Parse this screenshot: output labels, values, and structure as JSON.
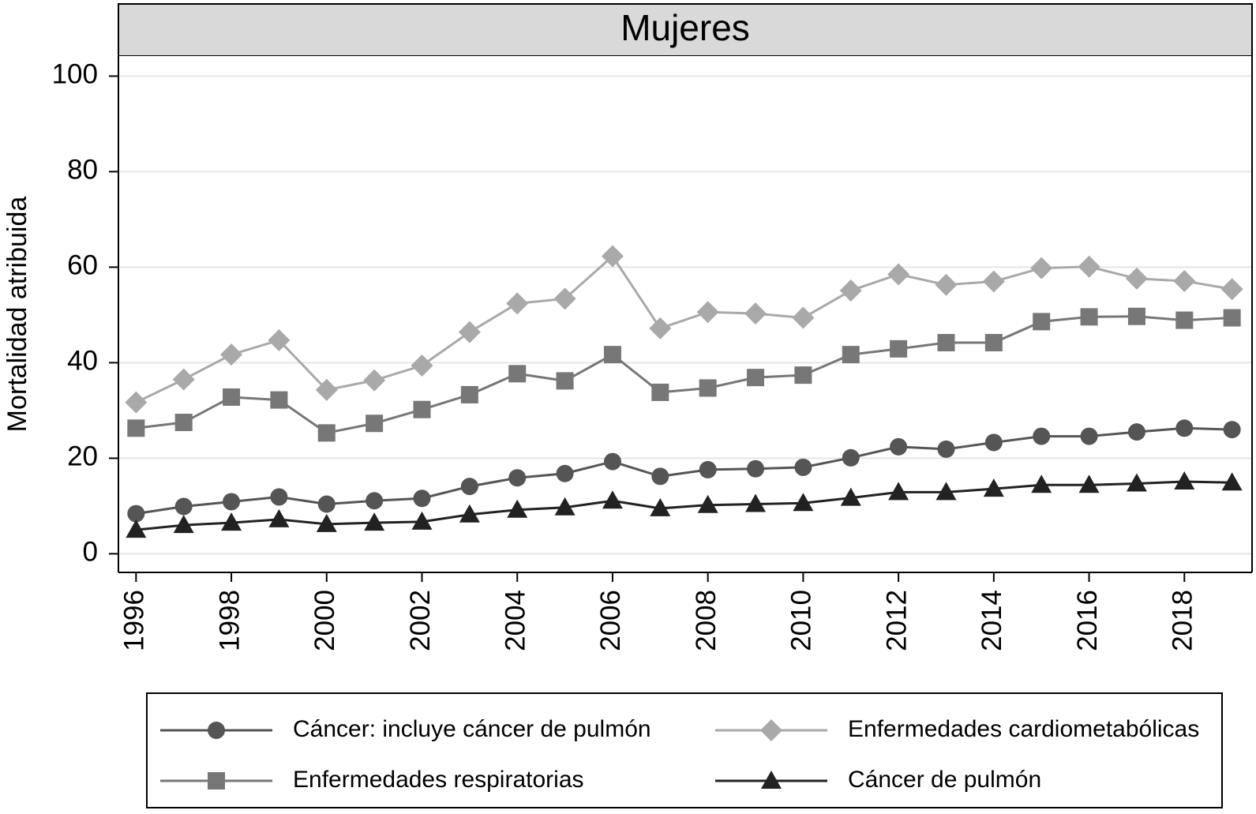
{
  "chart_data": {
    "type": "line",
    "title": "Mujeres",
    "y_label": "Mortalidad atribuida",
    "x": [
      1996,
      1997,
      1998,
      1999,
      2000,
      2001,
      2002,
      2003,
      2004,
      2005,
      2006,
      2007,
      2008,
      2009,
      2010,
      2011,
      2012,
      2013,
      2014,
      2015,
      2016,
      2017,
      2018,
      2019
    ],
    "series": [
      {
        "name": "Cáncer: incluye cáncer de pulmón",
        "color": "#555555",
        "marker": "circle",
        "values": [
          8.4,
          9.9,
          10.9,
          11.9,
          10.4,
          11.1,
          11.6,
          14.1,
          15.9,
          16.8,
          19.3,
          16.2,
          17.6,
          17.8,
          18.1,
          20.1,
          22.4,
          21.9,
          23.3,
          24.6,
          24.6,
          25.5,
          26.3,
          26.0
        ]
      },
      {
        "name": "Enfermedades cardiometabólicas",
        "color": "#a9a9a9",
        "marker": "diamond",
        "values": [
          31.7,
          36.5,
          41.7,
          44.7,
          34.3,
          36.3,
          39.4,
          46.4,
          52.4,
          53.4,
          62.3,
          47.2,
          50.6,
          50.3,
          49.4,
          55.1,
          58.5,
          56.3,
          57.0,
          59.8,
          60.1,
          57.6,
          57.1,
          55.4
        ]
      },
      {
        "name": "Enfermedades respiratorias",
        "color": "#777777",
        "marker": "square",
        "values": [
          26.3,
          27.5,
          32.8,
          32.2,
          25.3,
          27.3,
          30.2,
          33.3,
          37.7,
          36.2,
          41.7,
          33.8,
          34.7,
          36.9,
          37.4,
          41.7,
          42.9,
          44.2,
          44.2,
          48.6,
          49.6,
          49.7,
          48.9,
          49.4
        ]
      },
      {
        "name": "Cáncer de pulmón",
        "color": "#222222",
        "marker": "triangle",
        "values": [
          5.0,
          6.0,
          6.5,
          7.2,
          6.2,
          6.5,
          6.7,
          8.2,
          9.2,
          9.7,
          11.1,
          9.5,
          10.2,
          10.4,
          10.6,
          11.7,
          12.9,
          12.9,
          13.6,
          14.4,
          14.4,
          14.7,
          15.1,
          14.9
        ]
      }
    ],
    "xlim": [
      1995.63,
      2019.42
    ],
    "xticks": [
      1996,
      1998,
      2000,
      2002,
      2004,
      2006,
      2008,
      2010,
      2012,
      2014,
      2016,
      2018
    ],
    "ylim": [
      -3.9,
      104.2
    ],
    "yticks": [
      0,
      20,
      40,
      60,
      80,
      100
    ],
    "grid": true,
    "legend": "bottom"
  }
}
